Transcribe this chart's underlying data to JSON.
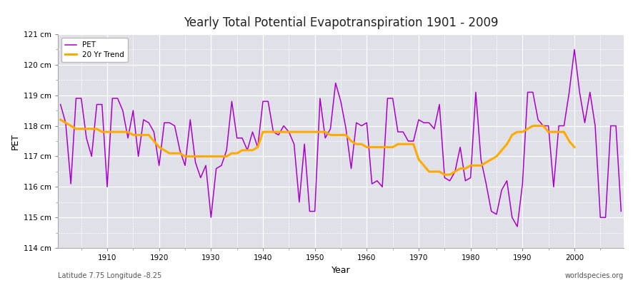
{
  "title": "Yearly Total Potential Evapotranspiration 1901 - 2009",
  "xlabel": "Year",
  "ylabel": "PET",
  "footnote_left": "Latitude 7.75 Longitude -8.25",
  "footnote_right": "worldspecies.org",
  "pet_color": "#aa00cc",
  "trend_color": "#ffaa00",
  "background_color": "#e0e0e8",
  "fig_background": "#ffffff",
  "ylim": [
    114,
    121
  ],
  "yticks": [
    114,
    115,
    116,
    117,
    118,
    119,
    120,
    121
  ],
  "ytick_labels": [
    "114 cm",
    "115 cm",
    "116 cm",
    "117 cm",
    "118 cm",
    "119 cm",
    "120 cm",
    "121 cm"
  ],
  "years": [
    1901,
    1902,
    1903,
    1904,
    1905,
    1906,
    1907,
    1908,
    1909,
    1910,
    1911,
    1912,
    1913,
    1914,
    1915,
    1916,
    1917,
    1918,
    1919,
    1920,
    1921,
    1922,
    1923,
    1924,
    1925,
    1926,
    1927,
    1928,
    1929,
    1930,
    1931,
    1932,
    1933,
    1934,
    1935,
    1936,
    1937,
    1938,
    1939,
    1940,
    1941,
    1942,
    1943,
    1944,
    1945,
    1946,
    1947,
    1948,
    1949,
    1950,
    1951,
    1952,
    1953,
    1954,
    1955,
    1956,
    1957,
    1958,
    1959,
    1960,
    1961,
    1962,
    1963,
    1964,
    1965,
    1966,
    1967,
    1968,
    1969,
    1970,
    1971,
    1972,
    1973,
    1974,
    1975,
    1976,
    1977,
    1978,
    1979,
    1980,
    1981,
    1982,
    1983,
    1984,
    1985,
    1986,
    1987,
    1988,
    1989,
    1990,
    1991,
    1992,
    1993,
    1994,
    1995,
    1996,
    1997,
    1998,
    1999,
    2000,
    2001,
    2002,
    2003,
    2004,
    2005,
    2006,
    2007,
    2008,
    2009
  ],
  "pet_values": [
    118.7,
    118.1,
    116.1,
    118.9,
    118.9,
    117.6,
    117.0,
    118.7,
    118.7,
    116.0,
    118.9,
    118.9,
    118.5,
    117.6,
    118.5,
    117.0,
    118.2,
    118.1,
    117.8,
    116.7,
    118.1,
    118.1,
    118.0,
    117.2,
    116.7,
    118.2,
    116.8,
    116.3,
    116.7,
    115.0,
    116.6,
    116.7,
    117.2,
    118.8,
    117.6,
    117.6,
    117.2,
    117.8,
    117.3,
    118.8,
    118.8,
    117.8,
    117.7,
    118.0,
    117.8,
    117.4,
    115.5,
    117.4,
    115.2,
    115.2,
    118.9,
    117.6,
    117.9,
    119.4,
    118.8,
    117.9,
    116.6,
    118.1,
    118.0,
    118.1,
    116.1,
    116.2,
    116.0,
    118.9,
    118.9,
    117.8,
    117.8,
    117.5,
    117.5,
    118.2,
    118.1,
    118.1,
    117.9,
    118.7,
    116.3,
    116.2,
    116.5,
    117.3,
    116.2,
    116.3,
    119.1,
    116.9,
    116.1,
    115.2,
    115.1,
    115.9,
    116.2,
    115.0,
    114.7,
    116.1,
    119.1,
    119.1,
    118.2,
    118.0,
    118.0,
    116.0,
    118.0,
    118.0,
    119.1,
    120.5,
    119.1,
    118.1,
    119.1,
    118.0,
    115.0,
    115.0,
    118.0,
    118.0,
    115.2
  ],
  "trend_values": [
    118.2,
    118.1,
    118.0,
    117.9,
    117.9,
    117.9,
    117.9,
    117.9,
    117.8,
    117.8,
    117.8,
    117.8,
    117.8,
    117.8,
    117.7,
    117.7,
    117.7,
    117.7,
    117.5,
    117.3,
    117.2,
    117.1,
    117.1,
    117.1,
    117.0,
    117.0,
    117.0,
    117.0,
    117.0,
    117.0,
    117.0,
    117.0,
    117.0,
    117.1,
    117.1,
    117.2,
    117.2,
    117.2,
    117.3,
    117.8,
    117.8,
    117.8,
    117.8,
    117.8,
    117.8,
    117.8,
    117.8,
    117.8,
    117.8,
    117.8,
    117.8,
    117.8,
    117.7,
    117.7,
    117.7,
    117.7,
    117.5,
    117.4,
    117.4,
    117.3,
    117.3,
    117.3,
    117.3,
    117.3,
    117.3,
    117.4,
    117.4,
    117.4,
    117.4,
    116.9,
    116.7,
    116.5,
    116.5,
    116.5,
    116.4,
    116.4,
    116.5,
    116.6,
    116.6,
    116.7,
    116.7,
    116.7,
    116.8,
    116.9,
    117.0,
    117.2,
    117.4,
    117.7,
    117.8,
    117.8,
    117.9,
    118.0,
    118.0,
    118.0,
    117.8,
    117.8,
    117.8,
    117.8,
    117.5,
    117.3
  ]
}
